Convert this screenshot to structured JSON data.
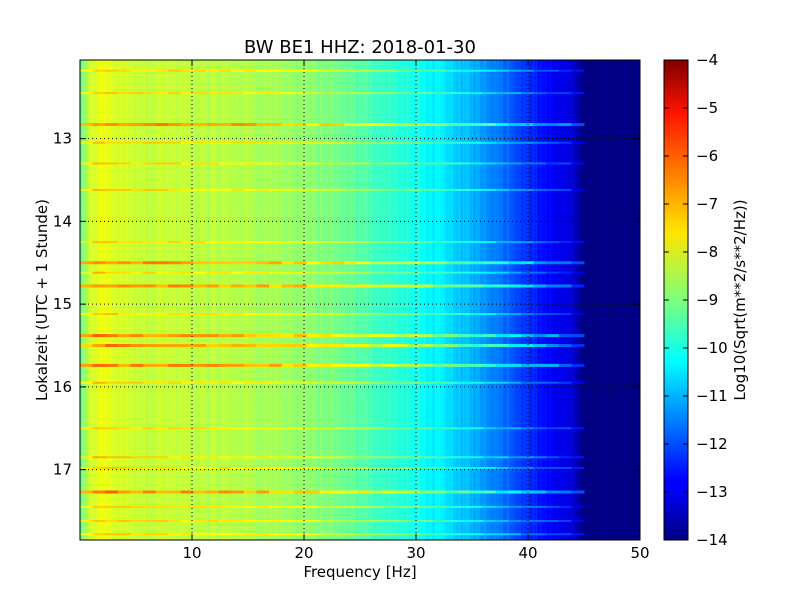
{
  "chart_data": {
    "type": "heatmap",
    "title": "BW BE1 HHZ: 2018-01-30",
    "xlabel": "Frequency [Hz]",
    "ylabel": "Lokalzeit (UTC + 1 Stunde)",
    "xlim": [
      0,
      50
    ],
    "ylim": [
      17.85,
      12.05
    ],
    "y_inverted": true,
    "x_ticks": [
      10,
      20,
      30,
      40,
      50
    ],
    "y_ticks": [
      13,
      14,
      15,
      16,
      17
    ],
    "grid": "dotted",
    "colorbar": {
      "label": "Log10(Sqrt(m**2/s**2/Hz))",
      "colormap": "jet",
      "range": [
        -14,
        -4
      ],
      "ticks": [
        -4,
        -5,
        -6,
        -7,
        -8,
        -9,
        -10,
        -11,
        -12,
        -13,
        -14
      ]
    },
    "spectral_profile": {
      "frequency_hz": [
        0,
        1,
        2,
        3,
        5,
        8,
        10,
        15,
        20,
        25,
        28,
        30,
        32,
        34,
        36,
        38,
        40,
        42,
        44,
        45,
        50
      ],
      "log10_amplitude": [
        -9.3,
        -8.2,
        -7.9,
        -8.1,
        -8.3,
        -8.3,
        -8.4,
        -8.5,
        -8.8,
        -9.4,
        -9.8,
        -10.1,
        -10.4,
        -10.8,
        -11.2,
        -11.7,
        -12.3,
        -12.8,
        -13.2,
        -14.0,
        -14.0
      ]
    },
    "strong_events_hour": [
      12.83,
      14.5,
      14.78,
      15.38,
      15.5,
      15.74,
      17.27
    ],
    "weak_events_hour": [
      12.18,
      12.45,
      13.05,
      13.3,
      13.62,
      14.25,
      14.62,
      15.12,
      15.95,
      16.5,
      16.85,
      16.98,
      17.45,
      17.62,
      17.78
    ]
  }
}
